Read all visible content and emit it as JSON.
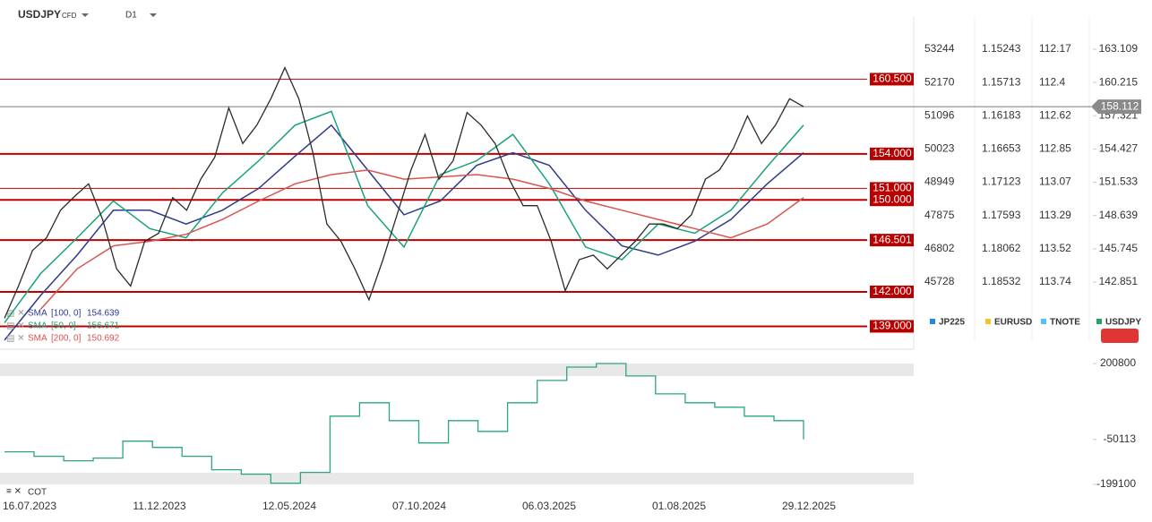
{
  "header": {
    "symbol": "USDJPY",
    "instrument_type": "CFD",
    "interval": "D1"
  },
  "price_chart": {
    "ylim": [
      137.4,
      165.83
    ],
    "yticks": [
      163.109,
      160.215,
      157.321,
      154.427,
      151.533,
      148.639,
      145.745,
      142.851
    ],
    "compare_axes": [
      {
        "name": "JP225",
        "color": "#1e88e5",
        "ticks": [
          53244,
          52170,
          51096,
          50023,
          48949,
          47875,
          46802,
          45728
        ]
      },
      {
        "name": "EURUSD",
        "color": "#f4c430",
        "ticks": [
          1.15243,
          1.15713,
          1.16183,
          1.16653,
          1.17123,
          1.17593,
          1.18062,
          1.18532
        ]
      },
      {
        "name": "TNOTE",
        "color": "#4fc3f7",
        "ticks": [
          112.17,
          112.4,
          112.62,
          112.85,
          113.07,
          113.29,
          113.52,
          113.74
        ]
      },
      {
        "name": "USDJPY",
        "color": "#26a269"
      }
    ],
    "current_price": 158.112,
    "levels": [
      {
        "value": 160.5,
        "label": "160.500"
      },
      {
        "value": 154,
        "label": "154.000"
      },
      {
        "value": 151,
        "label": "151.000"
      },
      {
        "value": 150,
        "label": "150.000"
      },
      {
        "value": 146.501,
        "label": "146.501"
      },
      {
        "value": 142,
        "label": "142.000"
      },
      {
        "value": 139,
        "label": "139.000"
      }
    ],
    "price": {
      "color": "#2b2b2b",
      "values": [
        139.7,
        142.5,
        145.6,
        146.7,
        149.1,
        150.3,
        151.4,
        148.3,
        144.0,
        142.5,
        146.4,
        147.1,
        150.2,
        149.1,
        151.8,
        153.7,
        158.0,
        154.9,
        156.5,
        158.8,
        161.5,
        158.8,
        154.1,
        147.9,
        146.4,
        144.0,
        141.3,
        144.8,
        148.7,
        152.6,
        155.7,
        151.8,
        153.4,
        157.6,
        156.5,
        154.9,
        151.8,
        149.5,
        149.5,
        146.4,
        142.1,
        144.8,
        145.2,
        144.0,
        145.2,
        146.4,
        147.9,
        147.9,
        147.5,
        148.7,
        151.8,
        152.6,
        154.5,
        157.3,
        154.9,
        156.5,
        158.8,
        158.112
      ]
    },
    "indicators": [
      {
        "name": "SMA",
        "params": "[100, 0]",
        "last": 154.639,
        "color": "#2e3a8c",
        "values": [
          137.8,
          141.7,
          145.2,
          149.1,
          149.1,
          147.9,
          149.1,
          151.0,
          153.8,
          156.5,
          152.6,
          148.7,
          149.9,
          153.0,
          154.1,
          153.0,
          149.1,
          146.0,
          145.2,
          146.4,
          148.3,
          151.4,
          154.1
        ]
      },
      {
        "name": "SMA",
        "params": "[50, 0]",
        "last": 156.671,
        "color": "#1aa37a",
        "values": [
          139.3,
          143.6,
          146.7,
          149.9,
          147.5,
          146.7,
          150.6,
          153.4,
          156.5,
          157.7,
          149.5,
          145.9,
          152.2,
          153.4,
          155.7,
          151.4,
          145.9,
          144.8,
          147.9,
          147.1,
          149.1,
          152.9,
          156.5
        ]
      },
      {
        "name": "SMA",
        "params": "[200, 0]",
        "last": 150.692,
        "color": "#d9534f",
        "values": [
          null,
          140.5,
          144.0,
          146.0,
          146.4,
          147.0,
          148.3,
          149.9,
          151.4,
          152.2,
          152.6,
          151.8,
          152.0,
          152.2,
          151.8,
          151.0,
          149.9,
          149.1,
          148.3,
          147.5,
          146.7,
          147.9,
          150.2
        ]
      }
    ]
  },
  "cot_chart": {
    "name": "COT",
    "color": "#2aa878",
    "ylim": [
      -210900,
      218500
    ],
    "yticks": [
      200800,
      -50113,
      -199100
    ],
    "values": [
      -91400,
      -106200,
      -121000,
      -112100,
      -56000,
      -76700,
      -106200,
      -150500,
      -165300,
      -194800,
      -159400,
      26600,
      70900,
      11900,
      -61900,
      11900,
      -23600,
      70900,
      144700,
      189000,
      200800,
      159500,
      100400,
      70900,
      56200,
      26600,
      11900,
      -50113
    ]
  },
  "x_axis": {
    "categories": [
      "16.07.2023",
      "11.12.2023",
      "12.05.2024",
      "07.10.2024",
      "06.03.2025",
      "01.08.2025",
      "29.12.2025"
    ]
  }
}
